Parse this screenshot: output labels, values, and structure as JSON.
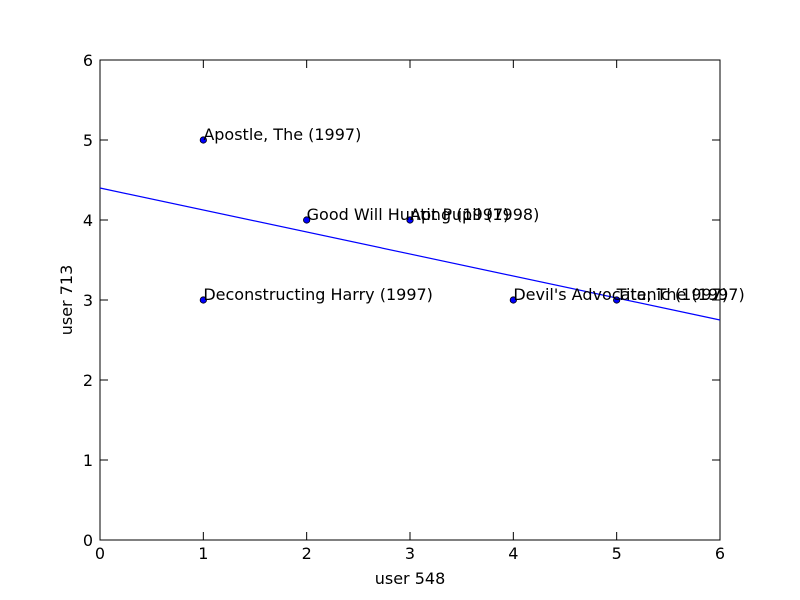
{
  "chart_data": {
    "type": "scatter",
    "xlabel": "user 548",
    "ylabel": "user 713",
    "xlim": [
      0,
      6
    ],
    "ylim": [
      0,
      6
    ],
    "x_ticks": [
      "0",
      "1",
      "2",
      "3",
      "4",
      "5",
      "6"
    ],
    "y_ticks": [
      "0",
      "1",
      "2",
      "3",
      "4",
      "5",
      "6"
    ],
    "grid": false,
    "colors": {
      "point": "#0000ff",
      "line": "#0000ff",
      "axes": "#000000"
    },
    "points": [
      {
        "x": 1,
        "y": 5,
        "label": "Apostle, The (1997)"
      },
      {
        "x": 1,
        "y": 3,
        "label": "Deconstructing Harry (1997)"
      },
      {
        "x": 2,
        "y": 4,
        "label": "Good Will Hunting (1997)"
      },
      {
        "x": 3,
        "y": 4,
        "label": "Apt Pupil (1998)"
      },
      {
        "x": 4,
        "y": 3,
        "label": "Devil's Advocate, The (1997)"
      },
      {
        "x": 5,
        "y": 3,
        "label": "Titanic (1997)"
      }
    ],
    "fit_line": {
      "intercept": 4.4,
      "slope": -0.275
    }
  }
}
